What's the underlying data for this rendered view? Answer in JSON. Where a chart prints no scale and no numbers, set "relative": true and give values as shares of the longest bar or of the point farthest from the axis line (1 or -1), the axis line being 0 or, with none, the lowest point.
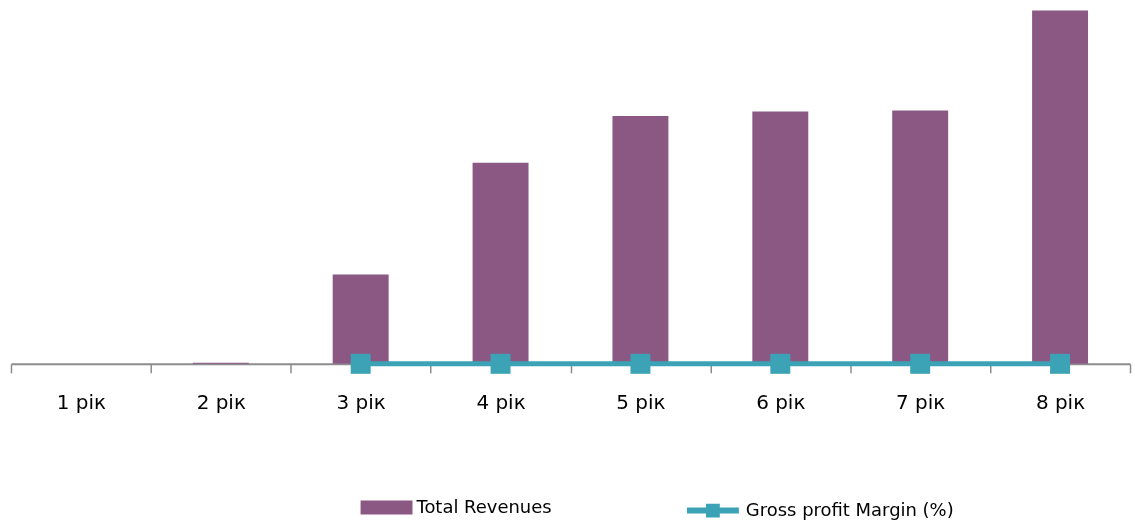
{
  "chart_data": {
    "type": "bar",
    "relative": true,
    "legend": "bottom",
    "categories": [
      "1 рік",
      "2 рік",
      "3 рік",
      "4 рік",
      "5 рік",
      "6 рік",
      "7 рік",
      "8 рік"
    ],
    "series": [
      {
        "name": "Total Revenues",
        "color": "#8b5783",
        "values": [
          null,
          0.003,
          0.253,
          0.569,
          0.701,
          0.714,
          0.717,
          1
        ]
      },
      {
        "name": "Gross profit Margin (%)",
        "type": "line",
        "marker": "square",
        "color": "#3ba3b5",
        "values": [
          null,
          null,
          0,
          0,
          0,
          0,
          0,
          0
        ]
      }
    ]
  }
}
